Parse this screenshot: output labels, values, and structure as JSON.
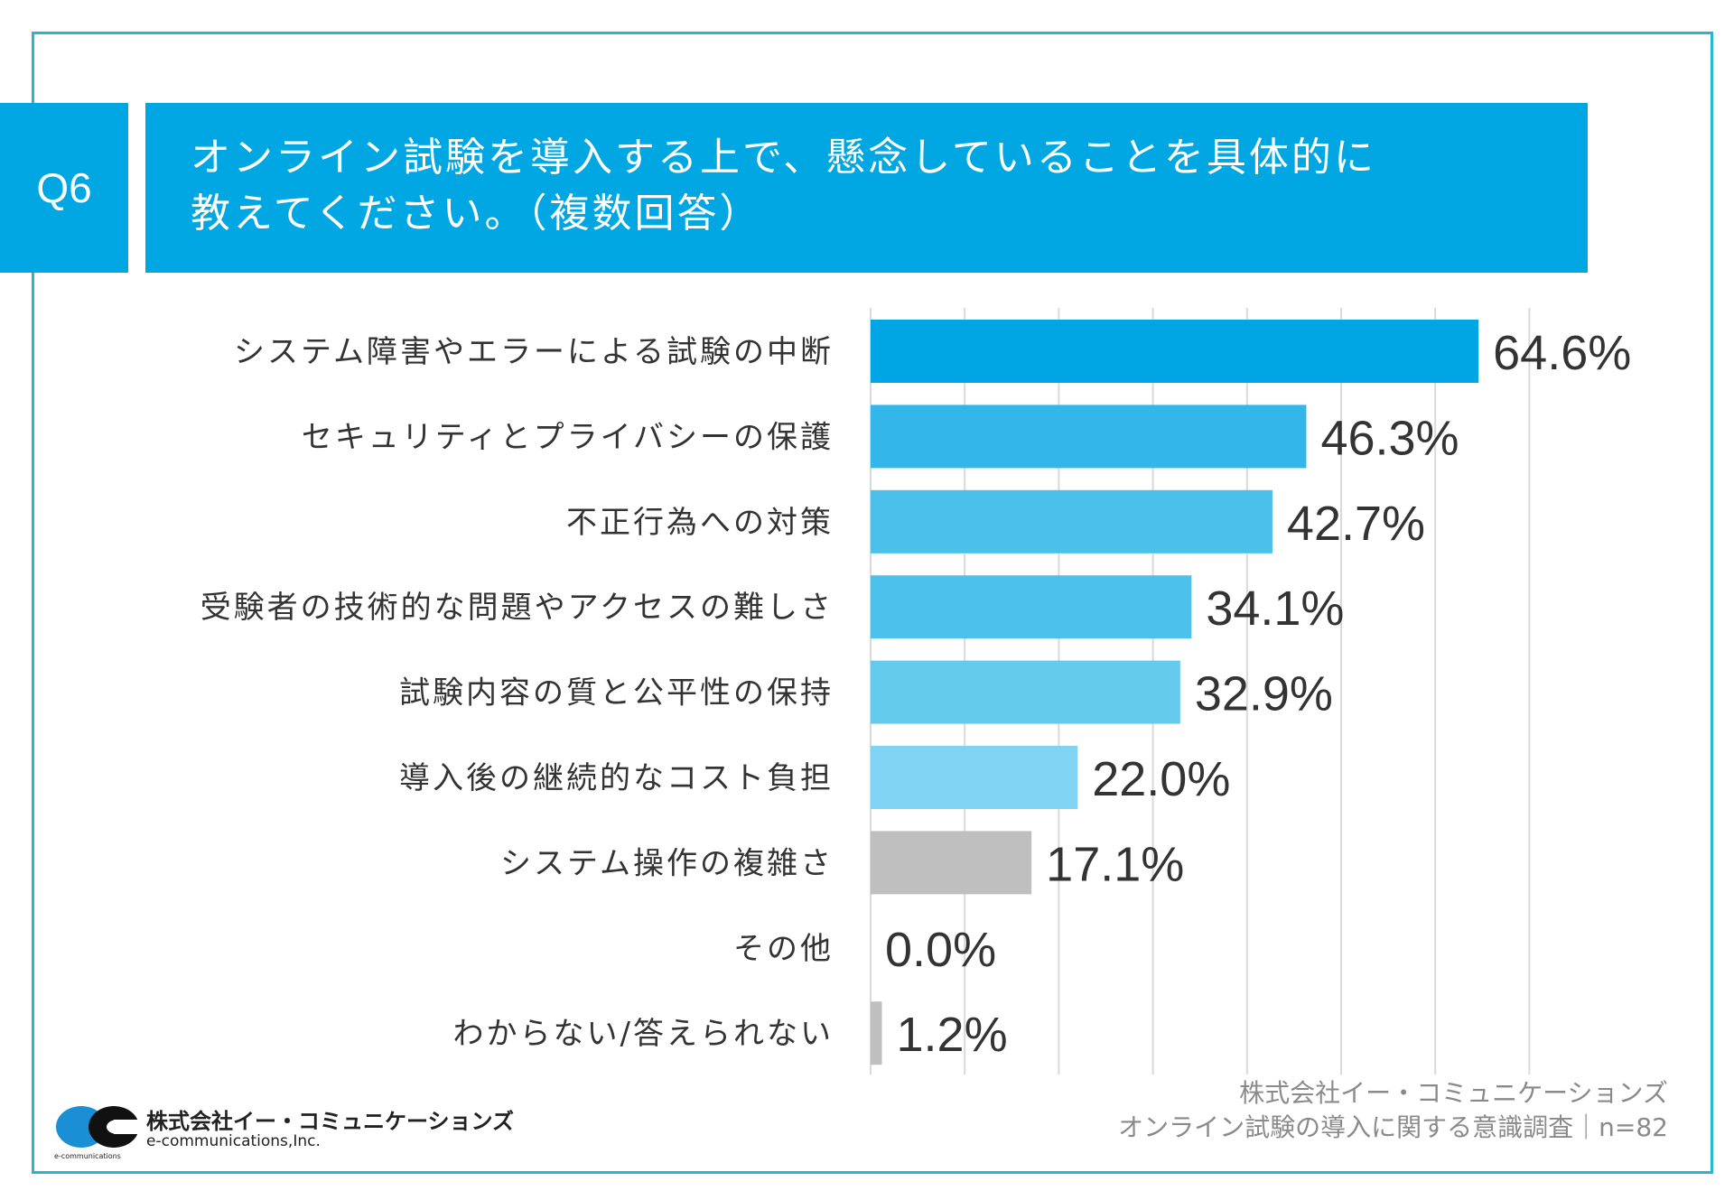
{
  "question": {
    "number": "Q6",
    "title_line1": "オンライン試験を導入する上で、懸念していることを具体的に",
    "title_line2": "教えてください。（複数回答）"
  },
  "chart_data": {
    "type": "bar",
    "orientation": "horizontal",
    "categories": [
      "システム障害やエラーによる試験の中断",
      "セキュリティとプライバシーの保護",
      "不正行為への対策",
      "受験者の技術的な問題やアクセスの難しさ",
      "試験内容の質と公平性の保持",
      "導入後の継続的なコスト負担",
      "システム操作の複雑さ",
      "その他",
      "わからない/答えられない"
    ],
    "values": [
      64.6,
      46.3,
      42.7,
      34.1,
      32.9,
      22.0,
      17.1,
      0.0,
      1.2
    ],
    "value_labels": [
      "64.6%",
      "46.3%",
      "42.7%",
      "34.1%",
      "32.9%",
      "22.0%",
      "17.1%",
      "0.0%",
      "1.2%"
    ],
    "colors": [
      "#00a6e4",
      "#33b6e9",
      "#4bc0eb",
      "#4cc1eb",
      "#66caef",
      "#80d3f2",
      "#bfbfbf",
      "#bfbfbf",
      "#bfbfbf"
    ],
    "xlim": [
      0,
      70
    ],
    "grid_step": 10,
    "grid": true,
    "unit": "%"
  },
  "footer": {
    "line1": "株式会社イー・コミュニケーションズ",
    "line2": "オンライン試験の導入に関する意識調査｜n=82"
  },
  "logo": {
    "name_jp": "株式会社イー・コミュニケーションズ",
    "name_en": "e-communications,Inc.",
    "small": "e-communications"
  },
  "colors": {
    "accent": "#00a7e3",
    "frame": "#2ab4d4"
  }
}
